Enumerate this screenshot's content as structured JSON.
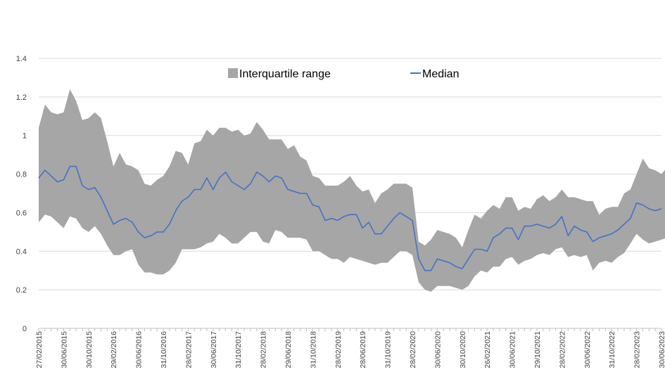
{
  "chart_data": {
    "type": "area",
    "title": "",
    "xlabel": "",
    "ylabel": "",
    "ylim": [
      0,
      1.4
    ],
    "yticks": [
      0,
      0.2,
      0.4,
      0.6,
      0.8,
      1.0,
      1.2,
      1.4
    ],
    "ytick_labels": [
      "0",
      "0.2",
      "0.4",
      "0.6",
      "0.8",
      "1",
      "1.2",
      "1.4"
    ],
    "grid": "horizontal",
    "legend_position": "top-center",
    "x_tick_labels": [
      "27/02/2015",
      "30/06/2015",
      "30/10/2015",
      "29/02/2016",
      "30/06/2016",
      "31/10/2016",
      "28/02/2017",
      "30/06/2017",
      "31/10/2017",
      "28/02/2018",
      "29/06/2018",
      "31/10/2018",
      "28/02/2019",
      "28/06/2019",
      "31/10/2019",
      "28/02/2020",
      "30/06/2020",
      "30/10/2020",
      "26/02/2021",
      "30/06/2021",
      "29/10/2021",
      "28/02/2022",
      "30/06/2022",
      "31/10/2022",
      "28/02/2023",
      "30/06/2023"
    ],
    "x_tick_positions": [
      0,
      4,
      8,
      12,
      16,
      20,
      24,
      28,
      32,
      36,
      40,
      44,
      48,
      52,
      56,
      60,
      64,
      68,
      72,
      76,
      80,
      84,
      88,
      92,
      96,
      100
    ],
    "series": [
      {
        "name": "Interquartile range",
        "kind": "band",
        "color": "#a6a6a6",
        "upper": [
          1.04,
          1.16,
          1.12,
          1.11,
          1.12,
          1.24,
          1.18,
          1.08,
          1.09,
          1.12,
          1.09,
          0.97,
          0.84,
          0.91,
          0.85,
          0.84,
          0.82,
          0.75,
          0.74,
          0.77,
          0.79,
          0.84,
          0.92,
          0.91,
          0.85,
          0.96,
          0.97,
          1.03,
          1.0,
          1.04,
          1.04,
          1.02,
          1.03,
          1.0,
          1.01,
          1.07,
          1.03,
          0.98,
          0.98,
          0.98,
          0.93,
          0.95,
          0.89,
          0.87,
          0.79,
          0.78,
          0.74,
          0.74,
          0.74,
          0.76,
          0.79,
          0.74,
          0.71,
          0.72,
          0.65,
          0.7,
          0.72,
          0.75,
          0.75,
          0.75,
          0.73,
          0.45,
          0.43,
          0.46,
          0.51,
          0.5,
          0.49,
          0.47,
          0.42,
          0.51,
          0.59,
          0.57,
          0.61,
          0.64,
          0.62,
          0.68,
          0.68,
          0.61,
          0.63,
          0.62,
          0.67,
          0.69,
          0.66,
          0.68,
          0.72,
          0.68,
          0.68,
          0.67,
          0.66,
          0.66,
          0.59,
          0.62,
          0.63,
          0.63,
          0.7,
          0.72,
          0.8,
          0.88,
          0.83,
          0.82,
          0.8,
          0.84
        ],
        "lower": [
          0.55,
          0.59,
          0.58,
          0.55,
          0.52,
          0.58,
          0.57,
          0.52,
          0.5,
          0.53,
          0.49,
          0.43,
          0.38,
          0.38,
          0.4,
          0.41,
          0.33,
          0.29,
          0.29,
          0.28,
          0.28,
          0.3,
          0.34,
          0.41,
          0.41,
          0.41,
          0.42,
          0.44,
          0.45,
          0.49,
          0.47,
          0.44,
          0.44,
          0.47,
          0.5,
          0.5,
          0.45,
          0.44,
          0.51,
          0.5,
          0.47,
          0.47,
          0.47,
          0.46,
          0.4,
          0.4,
          0.38,
          0.36,
          0.36,
          0.34,
          0.37,
          0.36,
          0.35,
          0.34,
          0.33,
          0.34,
          0.34,
          0.37,
          0.4,
          0.4,
          0.38,
          0.24,
          0.2,
          0.19,
          0.22,
          0.22,
          0.22,
          0.21,
          0.2,
          0.22,
          0.27,
          0.3,
          0.29,
          0.32,
          0.32,
          0.36,
          0.37,
          0.33,
          0.35,
          0.36,
          0.38,
          0.39,
          0.38,
          0.41,
          0.42,
          0.37,
          0.38,
          0.37,
          0.38,
          0.3,
          0.34,
          0.35,
          0.34,
          0.37,
          0.39,
          0.44,
          0.49,
          0.46,
          0.44,
          0.45,
          0.46,
          0.47
        ]
      },
      {
        "name": "Median",
        "kind": "line",
        "color": "#4472c4",
        "values": [
          0.78,
          0.82,
          0.79,
          0.76,
          0.77,
          0.84,
          0.84,
          0.74,
          0.72,
          0.73,
          0.68,
          0.61,
          0.54,
          0.56,
          0.57,
          0.55,
          0.5,
          0.47,
          0.48,
          0.5,
          0.5,
          0.54,
          0.61,
          0.66,
          0.68,
          0.72,
          0.72,
          0.78,
          0.72,
          0.78,
          0.81,
          0.76,
          0.74,
          0.72,
          0.75,
          0.81,
          0.79,
          0.76,
          0.79,
          0.78,
          0.72,
          0.71,
          0.7,
          0.7,
          0.64,
          0.63,
          0.56,
          0.57,
          0.56,
          0.58,
          0.59,
          0.59,
          0.52,
          0.55,
          0.49,
          0.49,
          0.53,
          0.57,
          0.6,
          0.58,
          0.56,
          0.36,
          0.3,
          0.3,
          0.36,
          0.35,
          0.34,
          0.32,
          0.31,
          0.36,
          0.41,
          0.41,
          0.4,
          0.47,
          0.49,
          0.52,
          0.52,
          0.46,
          0.53,
          0.53,
          0.54,
          0.53,
          0.52,
          0.54,
          0.58,
          0.48,
          0.53,
          0.51,
          0.5,
          0.45,
          0.47,
          0.48,
          0.49,
          0.51,
          0.54,
          0.57,
          0.65,
          0.64,
          0.62,
          0.61,
          0.62
        ]
      }
    ]
  }
}
